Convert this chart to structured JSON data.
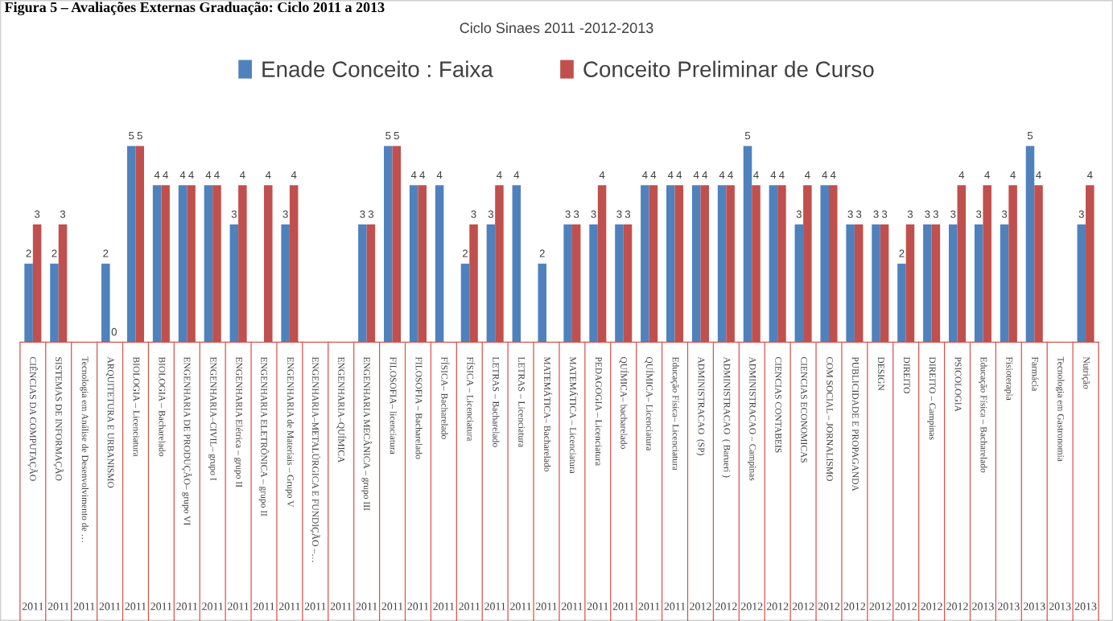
{
  "chart_data": {
    "type": "bar",
    "title": "Ciclo Sinaes 2011 -2012-2013",
    "categories": [
      "CIÊNCIAS DA COMPUTAÇÃO",
      "SISTEMAS DE INFORMAÇÃO",
      "Tecnologia em Análise de Desenvolvimento de …",
      "ARQUITETURA E URBANISMO",
      "BIOLOGIA – Licenciatura",
      "BIOLOGIA – Bacharelado",
      "ENGENHARIA DE PRODUÇÃO– grupo VI",
      "ENGENHARIA–CIVIL– grupo I",
      "ENGENHARIA Elétrica – grupo II",
      "ENGENHARIA ELETRÔNICA – grupo II",
      "ENGENHARIA de Materiais – Grupo V",
      "ENGENHARIA–METALÚRGICA E FUNDIÇÃO –…",
      "ENGENHARIA–QUÍMICA",
      "ENGENHARIA MECÂNICA – grupo III",
      "FILOSOFIA– licenciatura",
      "FILOSOFIA – Bacharelado",
      "FÍSICA– Bacharelado",
      "FÍSICA – Licenciatura",
      "LETRAS – Bacharelado",
      "LETRAS – Licenciatura",
      "MATEMÁTICA– Bacharelado",
      "MATEMÁTICA – Licenciatura",
      "PEDAGOGIA – Licenciatura",
      "QUÍMICA– bacharelado",
      "QUÍMICA– Licenciatura",
      "Educação Física– Licenciatura",
      "ADMINISTRACAO  (SP)",
      "ADMINISTRACAO  ( Barueri )",
      "ADMINISTRACAO – Campinas",
      "CIENCIAS CONTABEIS",
      "CIENCIAS ECONOMICAS",
      "COM SOCIAL – JORNALISMO",
      "PUBLICIDADE E PROPAGANDA",
      "DESIGN",
      "DIREITO",
      "DIREITO – Campinas",
      "PSICOLOGIA",
      "Educação Física – Bacharelado",
      "Fisioterapia",
      "Farmácia",
      "Tecnologia em Gastronomia",
      "Nutrição"
    ],
    "series": [
      {
        "name": "Enade Conceito : Faixa",
        "color": "#4f81bd",
        "values": [
          2,
          2,
          null,
          2,
          5,
          4,
          4,
          4,
          3,
          null,
          3,
          null,
          null,
          3,
          5,
          4,
          4,
          2,
          3,
          4,
          2,
          3,
          3,
          3,
          4,
          4,
          4,
          4,
          5,
          4,
          3,
          4,
          3,
          3,
          2,
          3,
          3,
          3,
          3,
          5,
          null,
          3
        ]
      },
      {
        "name": "Conceito Preliminar de Curso",
        "color": "#c0504d",
        "values": [
          3,
          3,
          null,
          0,
          5,
          4,
          4,
          4,
          4,
          4,
          4,
          null,
          null,
          3,
          5,
          4,
          null,
          3,
          4,
          null,
          null,
          3,
          4,
          3,
          4,
          4,
          4,
          4,
          4,
          4,
          4,
          4,
          3,
          3,
          3,
          3,
          4,
          4,
          4,
          4,
          null,
          4
        ]
      }
    ],
    "annotations": [
      "Figura 5 – Avaliações Externas Graduação: Ciclo 2011 a 2013",
      "2011",
      "2011",
      "2011",
      "2011",
      "2011",
      "2011",
      "2011",
      "2011",
      "2011",
      "2011",
      "2011",
      "2011",
      "2011",
      "2011",
      "2011",
      "2011",
      "2011",
      "2011",
      "2011",
      "2011",
      "2011",
      "2011",
      "2011",
      "2011",
      "2011",
      "2011",
      "2012",
      "2012",
      "2012",
      "2012",
      "2012",
      "2012",
      "2012",
      "2012",
      "2012",
      "2012",
      "2012",
      "2013",
      "2013",
      "2013",
      "2013",
      "2013"
    ],
    "data_labels": true,
    "legend": "top"
  }
}
